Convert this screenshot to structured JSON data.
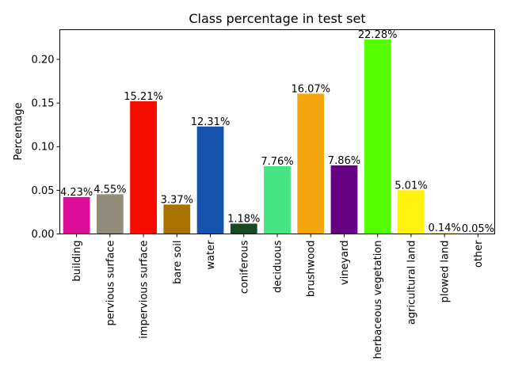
{
  "chart_data": {
    "type": "bar",
    "title": "Class percentage in test set",
    "xlabel": "",
    "ylabel": "Percentage",
    "ylim": [
      0,
      0.234
    ],
    "yticks": [
      0.0,
      0.05,
      0.1,
      0.15,
      0.2
    ],
    "ytick_labels": [
      "0.00",
      "0.05",
      "0.10",
      "0.15",
      "0.20"
    ],
    "grid": false,
    "categories": [
      "building",
      "pervious surface",
      "impervious surface",
      "bare soil",
      "water",
      "coniferous",
      "deciduous",
      "brushwood",
      "vineyard",
      "herbaceous vegetation",
      "agricultural land",
      "plowed land",
      "other"
    ],
    "values": [
      0.0423,
      0.0455,
      0.1521,
      0.0337,
      0.1231,
      0.0118,
      0.0776,
      0.1607,
      0.0786,
      0.2228,
      0.0501,
      0.0014,
      0.0005
    ],
    "data_labels": [
      "4.23%",
      "4.55%",
      "15.21%",
      "3.37%",
      "12.31%",
      "1.18%",
      "7.76%",
      "16.07%",
      "7.86%",
      "22.28%",
      "5.01%",
      "0.14%",
      "0.05%"
    ],
    "colors": [
      "#db0e9a",
      "#938e7b",
      "#f80c00",
      "#a97101",
      "#1553ae",
      "#194a26",
      "#46e483",
      "#f3a60d",
      "#660082",
      "#55ff00",
      "#fff30d",
      "#e4df7c",
      "#000000"
    ]
  }
}
